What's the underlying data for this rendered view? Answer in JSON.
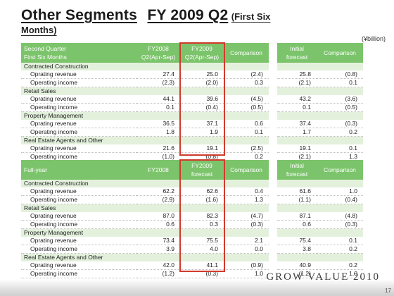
{
  "title": {
    "main": "Other Segments",
    "period": "FY 2009 Q2",
    "sub": "(First Six Months)"
  },
  "unit": "(¥billion)",
  "half_table": {
    "headers": {
      "label_line1": "Second Quarter",
      "label_line2": "First Six Months",
      "fy2008_line1": "FY2008",
      "fy2008_line2": "Q2(Apr-Sep)",
      "fy2009_line1": "FY2009",
      "fy2009_line2": "Q2(Apr-Sep)",
      "comparison": "Comparison",
      "initial_line1": "Initial",
      "initial_line2": "forecast",
      "comparison2": "Comparison"
    },
    "groups": [
      {
        "name": "Contracted Construction",
        "rows": [
          {
            "label": "Oprating revenue",
            "v": [
              "27.4",
              "25.0",
              "(2.4)",
              "25.8",
              "(0.8)"
            ]
          },
          {
            "label": "Operating income",
            "v": [
              "(2.3)",
              "(2.0)",
              "0.3",
              "(2.1)",
              "0.1"
            ]
          }
        ]
      },
      {
        "name": "Retail Sales",
        "rows": [
          {
            "label": "Oprating revenue",
            "v": [
              "44.1",
              "39.6",
              "(4.5)",
              "43.2",
              "(3.6)"
            ]
          },
          {
            "label": "Operating income",
            "v": [
              "0.1",
              "(0.4)",
              "(0.5)",
              "0.1",
              "(0.5)"
            ]
          }
        ]
      },
      {
        "name": "Property Management",
        "rows": [
          {
            "label": "Oprating revenue",
            "v": [
              "36.5",
              "37.1",
              "0.6",
              "37.4",
              "(0.3)"
            ]
          },
          {
            "label": "Operating income",
            "v": [
              "1.8",
              "1.9",
              "0.1",
              "1.7",
              "0.2"
            ]
          }
        ]
      },
      {
        "name": "Real Estate Agents and Other",
        "rows": [
          {
            "label": "Oprating revenue",
            "v": [
              "21.6",
              "19.1",
              "(2.5)",
              "19.1",
              "0.1"
            ]
          },
          {
            "label": "Operating income",
            "v": [
              "(1.0)",
              "(0.8)",
              "0.2",
              "(2.1)",
              "1.3"
            ]
          }
        ]
      }
    ]
  },
  "full_table": {
    "headers": {
      "label": "Full-year",
      "fy2008": "FY2008",
      "fy2009_line1": "FY2009",
      "fy2009_line2": "forecast",
      "comparison": "Comparison",
      "initial_line1": "Initial",
      "initial_line2": "forecast",
      "comparison2": "Comparison"
    },
    "groups": [
      {
        "name": "Contracted Construction",
        "rows": [
          {
            "label": "Oprating revenue",
            "v": [
              "62.2",
              "62.6",
              "0.4",
              "61.6",
              "1.0"
            ]
          },
          {
            "label": "Operating income",
            "v": [
              "(2.9)",
              "(1.6)",
              "1.3",
              "(1.1)",
              "(0.4)"
            ]
          }
        ]
      },
      {
        "name": "Retail Sales",
        "rows": [
          {
            "label": "Oprating revenue",
            "v": [
              "87.0",
              "82.3",
              "(4.7)",
              "87.1",
              "(4.8)"
            ]
          },
          {
            "label": "Operating income",
            "v": [
              "0.6",
              "0.3",
              "(0.3)",
              "0.6",
              "(0.3)"
            ]
          }
        ]
      },
      {
        "name": "Property Management",
        "rows": [
          {
            "label": "Oprating revenue",
            "v": [
              "73.4",
              "75.5",
              "2.1",
              "75.4",
              "0.1"
            ]
          },
          {
            "label": "Operating income",
            "v": [
              "3.9",
              "4.0",
              "0.0",
              "3.8",
              "0.2"
            ]
          }
        ]
      },
      {
        "name": "Real Estate Agents and Other",
        "rows": [
          {
            "label": "Oprating revenue",
            "v": [
              "42.0",
              "41.1",
              "(0.9)",
              "40.9",
              "0.2"
            ]
          },
          {
            "label": "Operating income",
            "v": [
              "(1.2)",
              "(0.3)",
              "1.0",
              "(1.2)",
              "1.0"
            ]
          }
        ]
      }
    ]
  },
  "footer": {
    "brand": "GROW VALUE 2010",
    "page": "17"
  },
  "colors": {
    "header_green": "#7cc46b",
    "group_band": "#e3f1dc",
    "highlight_red": "#d13a2c"
  }
}
